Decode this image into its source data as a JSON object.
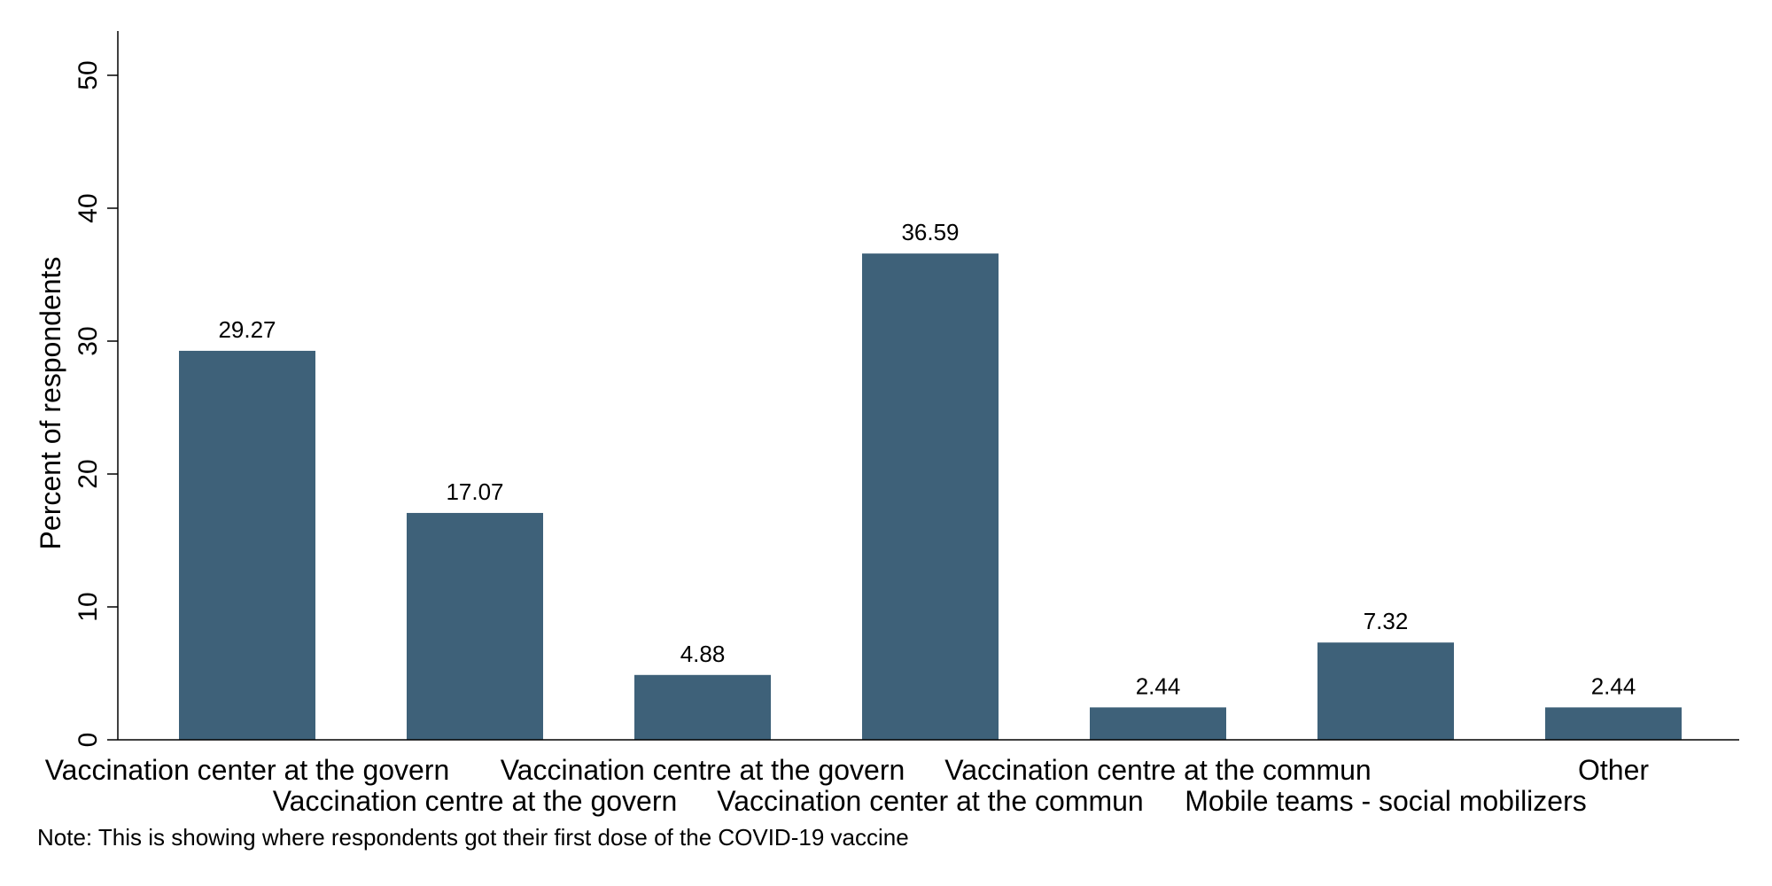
{
  "chart_data": {
    "type": "bar",
    "categories": [
      "Vaccination center at the govern",
      "Vaccination centre at the govern",
      "Vaccination centre at the govern",
      "Vaccination center at the commun",
      "Vaccination centre at the commun",
      "Mobile teams - social mobilizers",
      "Other"
    ],
    "values": [
      29.27,
      17.07,
      4.88,
      36.59,
      2.44,
      7.32,
      2.44
    ],
    "value_labels": [
      "29.27",
      "17.07",
      "4.88",
      "36.59",
      "2.44",
      "7.32",
      "2.44"
    ],
    "title": "",
    "xlabel": "",
    "ylabel": "Percent of respondents",
    "ylim": [
      0,
      52
    ],
    "yticks": [
      0,
      10,
      20,
      30,
      40,
      50
    ],
    "ytick_labels": [
      "0",
      "10",
      "20",
      "30",
      "40",
      "50"
    ],
    "grid": false,
    "bar_color": "#3e6179",
    "note": "Note: This is showing where respondents got their first dose of the COVID-19 vaccine"
  }
}
